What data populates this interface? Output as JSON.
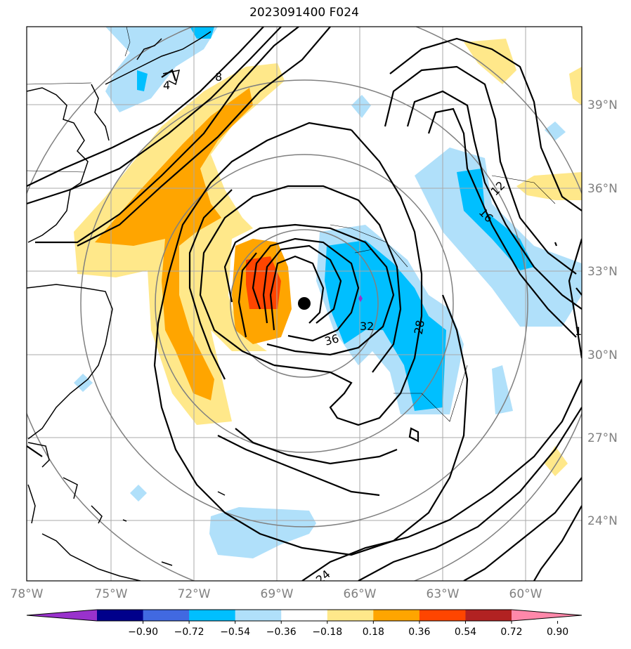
{
  "title": "2023091400 F024",
  "lon_labels": [
    "78°W",
    "75°W",
    "72°W",
    "69°W",
    "66°W",
    "63°W",
    "60°W"
  ],
  "lat_labels": [
    "39°N",
    "36°N",
    "33°N",
    "30°N",
    "27°N",
    "24°N"
  ],
  "colorbar": {
    "ticks": [
      "−0.90",
      "−0.72",
      "−0.54",
      "−0.36",
      "−0.18",
      "0.18",
      "0.36",
      "0.54",
      "0.72",
      "0.90"
    ],
    "colors": [
      "#9932cc",
      "#00008b",
      "#4169e1",
      "#00bfff",
      "#b0e0fa",
      "#ffffff",
      "#ffe88a",
      "#ffa500",
      "#ff4500",
      "#b22222",
      "#ff88aa"
    ]
  },
  "contour_labels": [
    "4",
    "8",
    "12",
    "16",
    "36",
    "32",
    "28",
    "24",
    "1"
  ],
  "colors": {
    "grid": "#a9a9a9",
    "range_ring": "#808080",
    "contour": "#000000"
  }
}
